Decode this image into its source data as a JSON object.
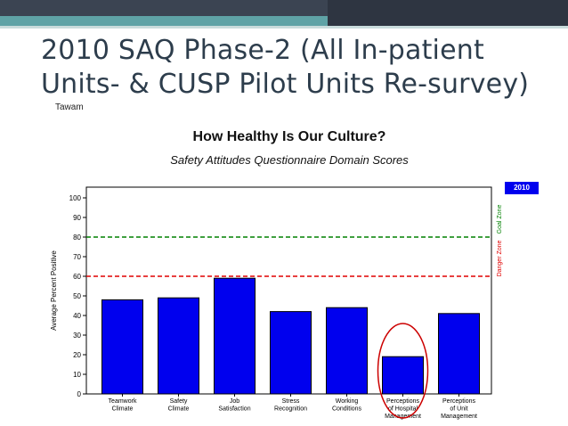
{
  "slide": {
    "title": "2010 SAQ Phase-2 (All In-patient Units- & CUSP Pilot Units Re-survey)",
    "site": "Tawam"
  },
  "chart_data": {
    "type": "bar",
    "title": "How Healthy Is Our Culture?",
    "subtitle": "Safety Attitudes Questionnaire Domain Scores",
    "ylabel": "Average Percent Positive",
    "xlabel": "",
    "ylim": [
      0,
      100
    ],
    "yticks": [
      0,
      10,
      20,
      30,
      40,
      50,
      60,
      70,
      80,
      90,
      100
    ],
    "categories": [
      [
        "Teamwork",
        "Climate"
      ],
      [
        "Safety",
        "Climate"
      ],
      [
        "Job",
        "Satisfaction"
      ],
      [
        "Stress",
        "Recognition"
      ],
      [
        "Working",
        "Conditions"
      ],
      [
        "Perceptions",
        "of Hospital",
        "Management"
      ],
      [
        "Perceptions",
        "of Unit",
        "Management"
      ]
    ],
    "series": [
      {
        "name": "2010",
        "values": [
          48,
          49,
          59,
          42,
          44,
          19,
          41
        ],
        "color": "#0000ee"
      }
    ],
    "reference_lines": [
      {
        "label": "Goal Zone",
        "value": 80,
        "color": "#008000",
        "style": "dashed"
      },
      {
        "label": "Danger Zone",
        "value": 60,
        "color": "#e00000",
        "style": "dashed"
      }
    ],
    "highlight": {
      "category_index": 5,
      "shape": "ellipse",
      "color": "#cc0000"
    },
    "legend_position": "top-right",
    "grid": false
  }
}
